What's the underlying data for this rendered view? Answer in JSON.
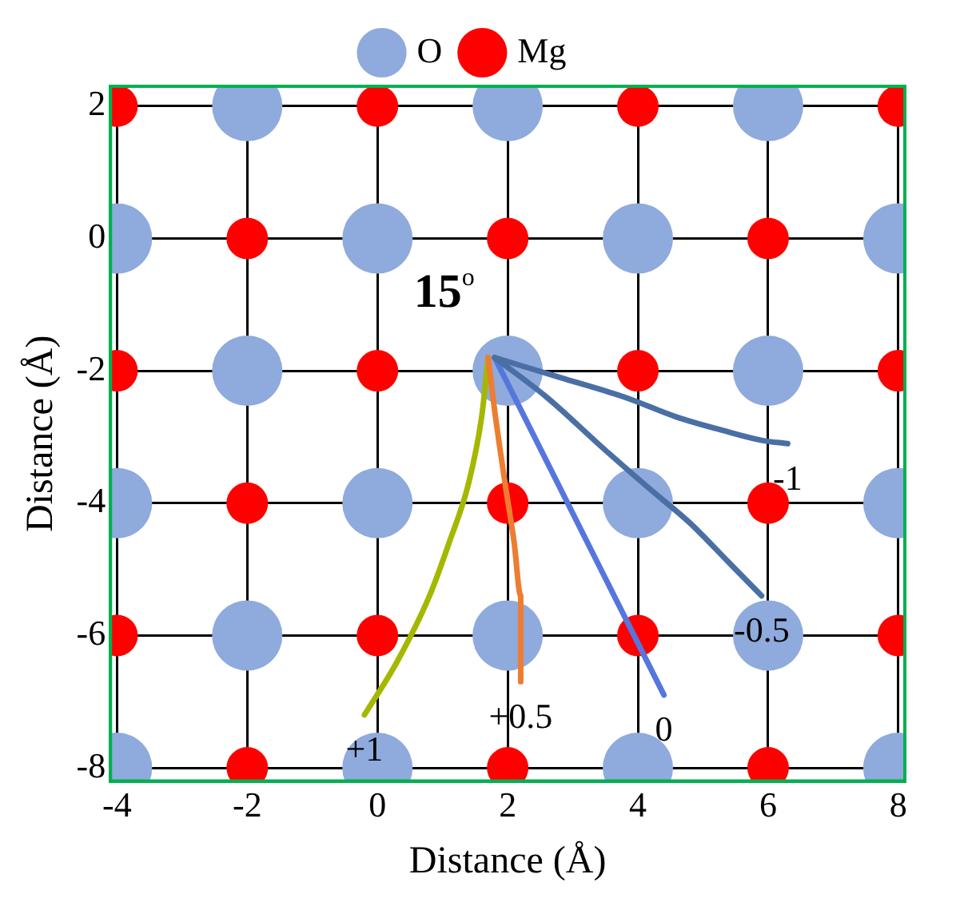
{
  "chart_data": {
    "type": "scatter",
    "xlabel": "Distance (Å)",
    "ylabel": "Distance (Å)",
    "xlim": [
      -4.1,
      8.1
    ],
    "ylim": [
      -8.2,
      2.3
    ],
    "xticks": [
      -4,
      -2,
      0,
      2,
      4,
      6,
      8
    ],
    "yticks": [
      -8,
      -6,
      -4,
      -2,
      0,
      2
    ],
    "grid": true,
    "legend": "top",
    "annotations": [
      "15$^{o}$"
    ],
    "series": [
      {
        "name": "O",
        "color": "#8faadc",
        "marker": "circle",
        "x": [
          -2,
          2,
          6,
          -4,
          0,
          4,
          8,
          -2,
          2,
          6,
          -4,
          0,
          4,
          8,
          -2,
          2,
          6,
          -4,
          0,
          4,
          8
        ],
        "values": [
          2,
          2,
          2,
          0,
          0,
          0,
          0,
          -2,
          -2,
          -2,
          -4,
          -4,
          -4,
          -4,
          -6,
          -6,
          -6,
          -8,
          -8,
          -8,
          -8
        ]
      },
      {
        "name": "Mg",
        "color": "#ff0000",
        "marker": "circle",
        "x": [
          -4,
          0,
          4,
          8,
          -2,
          2,
          6,
          -4,
          0,
          4,
          8,
          -2,
          2,
          6,
          -4,
          0,
          4,
          8,
          -2,
          2,
          6
        ],
        "values": [
          2,
          2,
          2,
          2,
          0,
          0,
          0,
          -2,
          -2,
          -2,
          -2,
          -4,
          -4,
          -4,
          -6,
          -6,
          -6,
          -6,
          -8,
          -8,
          -8
        ]
      },
      {
        "name": "-1",
        "type": "line",
        "color": "#4a6fa5",
        "marker": "none",
        "x": [
          1.8,
          2.8,
          3.8,
          4.6,
          5.3,
          5.9,
          6.3
        ],
        "values": [
          -1.8,
          -2.1,
          -2.4,
          -2.7,
          -2.9,
          -3.05,
          -3.1
        ]
      },
      {
        "name": "-0.5",
        "type": "line",
        "color": "#4a6fa5",
        "marker": "none",
        "x": [
          1.8,
          2.6,
          3.5,
          4.2,
          4.8,
          5.4,
          5.9
        ],
        "values": [
          -1.8,
          -2.4,
          -3.2,
          -3.8,
          -4.3,
          -4.9,
          -5.4
        ]
      },
      {
        "name": "0",
        "type": "line",
        "color": "#5577dd",
        "marker": "none",
        "x": [
          1.8,
          4.4
        ],
        "values": [
          -1.8,
          -6.9
        ]
      },
      {
        "name": "+0.5",
        "type": "line",
        "color": "#ed7d31",
        "marker": "none",
        "x": [
          1.7,
          1.8,
          1.96,
          2.1,
          2.2,
          2.2
        ],
        "values": [
          -1.8,
          -2.6,
          -3.7,
          -4.6,
          -5.4,
          -6.7
        ]
      },
      {
        "name": "+1",
        "type": "line",
        "color": "#a5b800",
        "marker": "none",
        "x": [
          1.7,
          1.6,
          1.4,
          1.1,
          0.8,
          0.3,
          -0.2
        ],
        "values": [
          -1.8,
          -2.7,
          -3.7,
          -4.6,
          -5.4,
          -6.4,
          -7.2
        ]
      }
    ]
  }
}
